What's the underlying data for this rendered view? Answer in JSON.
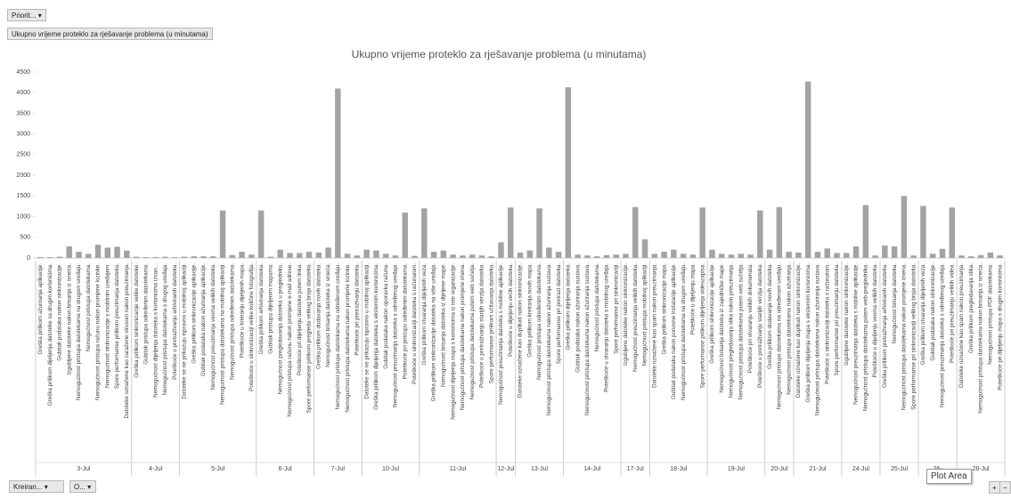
{
  "ui": {
    "priority_button": "Priorit...",
    "field_button": "Ukupno vrijeme proteklo za rješavanje problema (u minutama)",
    "created_button": "Kreiran...",
    "o_button": "O...",
    "tooltip": "Plot Area"
  },
  "chart_data": {
    "type": "bar",
    "title": "Ukupno vrijeme proteklo za rješavanje problema (u minutama)",
    "color": "#a3a3a3",
    "ylim": [
      0,
      4500
    ],
    "yticks": [
      0,
      500,
      1000,
      1500,
      2000,
      2500,
      3000,
      3500,
      4000,
      4500
    ],
    "grid": false,
    "groups": [
      {
        "label": "3-Jul",
        "categories": [
          "Greška prilikom ažuriranja aplikacije.",
          "Greška prilikom dijeljenja datoteke sa drugim korisnicima.",
          "Gubitak podataka nakon sinkronizacije.",
          "Izgubljene datoteke nakon brisanja iz smeća.",
          "Nemogućnost pristupa datotekama na drugom uređaju.",
          "Nemogućnost pristupa datotekama.",
          "Nemogućnost pristupa računu nakon promjene lozinke.",
          "Nemogućnost sinkronizacije s mobilnim uređajem.",
          "Spore performanse prilikom preuzimanja datoteka.",
          "Datoteke označene kao zaražene virusom nakon preuzimanja."
        ],
        "values": [
          20,
          20,
          30,
          280,
          150,
          100,
          320,
          250,
          270,
          180
        ]
      },
      {
        "label": "4-Jul",
        "categories": [
          "Greška prilikom sinkronizacije velike datoteke.",
          "Gubitak pristupa određenim datotekama.",
          "Nemogućnost dijeljenja datoteka s korisnicima izvan...",
          "Nemogućnost pristupa datotekama s drugog uređaja.",
          "Poteškoće u pretraživanju arhiviranih datoteka."
        ],
        "values": [
          30,
          20,
          20,
          30,
          20
        ]
      },
      {
        "label": "5-Jul",
        "categories": [
          "Datoteke se ne prikazuju ispravno u mobilnoj aplikaciji.",
          "Greška prilikom sinkronizacije aplikacije.",
          "Gubitak podataka nakon ažuriranja aplikacije.",
          "Nemogućnost preuzimanja veoma velikih datoteka.",
          "Nemogućnost pristupa datotekama na mobilnoj aplikaciji.",
          "Nemogućnost pristupa određenim datotekama.",
          "Poteškoće u kreiranju dijeljenih mapa.",
          "Poteškoće u sinkronizaciji velike količine fotografija."
        ],
        "values": [
          30,
          40,
          40,
          40,
          1150,
          70,
          150,
          80
        ]
      },
      {
        "label": "6-Jul",
        "categories": [
          "Greška prilikom arhiviranja datoteka.",
          "Gubitak pristupa dijeljenim mapama.",
          "Nemogućnost pregledavanja datoteka u pregledniku.",
          "Nemogućnost pristupa računu nakon promjene e-mail adrese.",
          "Poteškoće pri dijeljenju datoteka putem linka.",
          "Spore performanse prilikom pregleda velikog broja datoteka."
        ],
        "values": [
          1150,
          30,
          200,
          120,
          120,
          150
        ]
      },
      {
        "label": "7-Jul",
        "categories": [
          "Greška prilikom dodavanja novih datoteka.",
          "Nemogućnost brisanja datoteka iz smeća.",
          "Nemogućnost pristupa datotekama na određenom uređaju.",
          "Nemogućnost pristupa datotekama nakon promjene lozinke.",
          "Poteškoće pri pretraživanju datoteka."
        ],
        "values": [
          130,
          250,
          4100,
          100,
          60
        ]
      },
      {
        "label": "10-Jul",
        "categories": [
          "Datoteke se ne prikazuju ispravno u mobilnoj aplikaciji.",
          "Greška prilikom dijeljenja datoteka s eksternim korisnicima.",
          "Gubitak podataka nakon oporavka računa.",
          "Nemogućnost preuzimanja datoteka s određenog uređaja.",
          "Poteškoće pri pristupu određenim datotekama.",
          "Poteškoće u sinkronizaciji datoteka s računalom."
        ],
        "values": [
          200,
          180,
          100,
          60,
          1100,
          50
        ]
      },
      {
        "label": "11-Jul",
        "categories": [
          "Greška prilikom otvaranja dijeljenih veza.",
          "Greška prilikom sinkronizacije datoteka na više uređaja.",
          "Nemogućnost brisanja datoteka iz dijeljene mape.",
          "Nemogućnost dijeljenja mapa s korisnicima iz iste organizacije.",
          "Nemogućnost pristupa datotekama nakon promjene imena.",
          "Nemogućnost pristupa datotekama putem web sučelja.",
          "Poteškoće u pretraživanju starijih verzija datoteka.",
          "Spore performanse prilikom učitavanja datoteka."
        ],
        "values": [
          1200,
          150,
          180,
          80,
          60,
          80,
          60,
          40
        ]
      },
      {
        "label": "12-Jul",
        "categories": [
          "Nemogućnost preuzimanja datoteka s mobilne aplikacije.",
          "Poteškoće u dijeljenju većih datoteka."
        ],
        "values": [
          380,
          1220
        ]
      },
      {
        "label": "13-Jul",
        "categories": [
          "Datoteke označene kao duplikati nakon sinkronizacije.",
          "Greška prilikom kreiranja novih mapa.",
          "Nemogućnost pristupa određenim datotekama.",
          "Nemogućnost pristupa datotekama nakon ažuriranja sustava.",
          "Spore performanse pri pretrazi datoteka."
        ],
        "values": [
          130,
          180,
          1200,
          250,
          150
        ]
      },
      {
        "label": "14-Jul",
        "categories": [
          "Greška prilikom dijeljenja datoteka.",
          "Gubitak podataka nakon ažuriranja sustava.",
          "Nemogućnost pristupa datotekama nakon ažuriranja sustava.",
          "Nemogućnost pristupa datotekama.",
          "Poteškoće u otvaranju datoteka s mobilnog uređaja.",
          "Spore performanse pri sinkronizaciji."
        ],
        "values": [
          4130,
          80,
          60,
          40,
          70,
          80
        ]
      },
      {
        "label": "17-Jul",
        "categories": [
          "Izgubljene datoteke nakon sinkronizacije.",
          "Nemogućnost preuzimanja velikih datoteka.",
          "Nemogućnost pristupa mobilnoj aplikaciji."
        ],
        "values": [
          100,
          1230,
          450
        ]
      },
      {
        "label": "18-Jul",
        "categories": [
          "Datoteke označene kao spam nakon preuzimanja.",
          "Greška prilikom sinkronizacije mapa.",
          "Gubitak podataka nakon ponovne instalacije aplikacije.",
          "Nemogućnost pristupa datotekama na drugom uređaju.",
          "Poteškoće u dijeljenju mapa.",
          "Spore performanse prilikom dijeljenja videozapisa."
        ],
        "values": [
          100,
          150,
          200,
          100,
          80,
          1220
        ]
      },
      {
        "label": "19-Jul",
        "categories": [
          "Greška prilikom sinkronizacije aplikacije.",
          "Nemogućnost brisanja datoteka iz zajedničke mape.",
          "Nemogućnost pregledavanja slika nakon preuzimanja.",
          "Nemogućnost pristupa datotekama putem web sučelja.",
          "Poteškoće pri otvaranju velikih dokumenata.",
          "Poteškoće u pretraživanju starijih verzija datoteka."
        ],
        "values": [
          200,
          100,
          80,
          100,
          80,
          1150
        ]
      },
      {
        "label": "20-Jul",
        "categories": [
          "Greška prilikom dodavanja novih datoteka.",
          "Nemogućnost pristupa datotekama na određenom uređaju.",
          "Nemogućnost pristupa datotekama nakon ažuriranja."
        ],
        "values": [
          200,
          1230,
          150
        ]
      },
      {
        "label": "21-Jul",
        "categories": [
          "Datoteke označene kao duplikati nakon sinkronizacije.",
          "Greška prilikom dijeljenja mapa s eksternim korisnicima.",
          "Nemogućnost pristupa datotekama nakon ažuriranja sustava.",
          "Poteškoće u sinkronizaciji datoteka s računalom.",
          "Spore performanse pri preuzimanju datoteka."
        ],
        "values": [
          130,
          4270,
          150,
          230,
          120
        ]
      },
      {
        "label": "24-Jul",
        "categories": [
          "Izgubljene datoteke nakon sinkronizacije.",
          "Nemogućnost preuzimanja datoteka s mobilne aplikacije.",
          "Nemogućnost pristupa datotekama putem web preglednika.",
          "Poteškoće u dijeljenju veoma velikih datoteka."
        ],
        "values": [
          120,
          280,
          1280,
          60
        ]
      },
      {
        "label": "25-Jul",
        "categories": [
          "Greška prilikom pretraživanja arhiviranih datoteka.",
          "Nemogućnost brisanja datoteka.",
          "Nemogućnost pristupa datotekama nakon promjene imena.",
          "Spore performanse pri sinkronizaciji velikog broja datoteka."
        ],
        "values": [
          300,
          280,
          1500,
          60
        ]
      },
      {
        "label": "26-",
        "categories": [
          "Greška prilikom otvaranja dijeljenih veza.",
          "Gubitak podataka nakon sinkronizacije.",
          "Nemogućnost preuzimanja datoteka s određenog uređaja.",
          "Poteškoće pri preuzimanju velikih videa."
        ],
        "values": [
          1260,
          100,
          220,
          1220
        ]
      },
      {
        "label": "28-Jul",
        "categories": [
          "Datoteke označene kao spam nakon preuzimanja.",
          "Greška prilikom pregledavanja slika.",
          "Nemogućnost pristupa datotekama nakon brisanja iz smeća.",
          "Nemogućnost pristupa PDF datotekama.",
          "Poteškoće pri dijeljenju mapa s drugim korisnicima."
        ],
        "values": [
          60,
          40,
          70,
          130,
          60
        ]
      }
    ]
  }
}
